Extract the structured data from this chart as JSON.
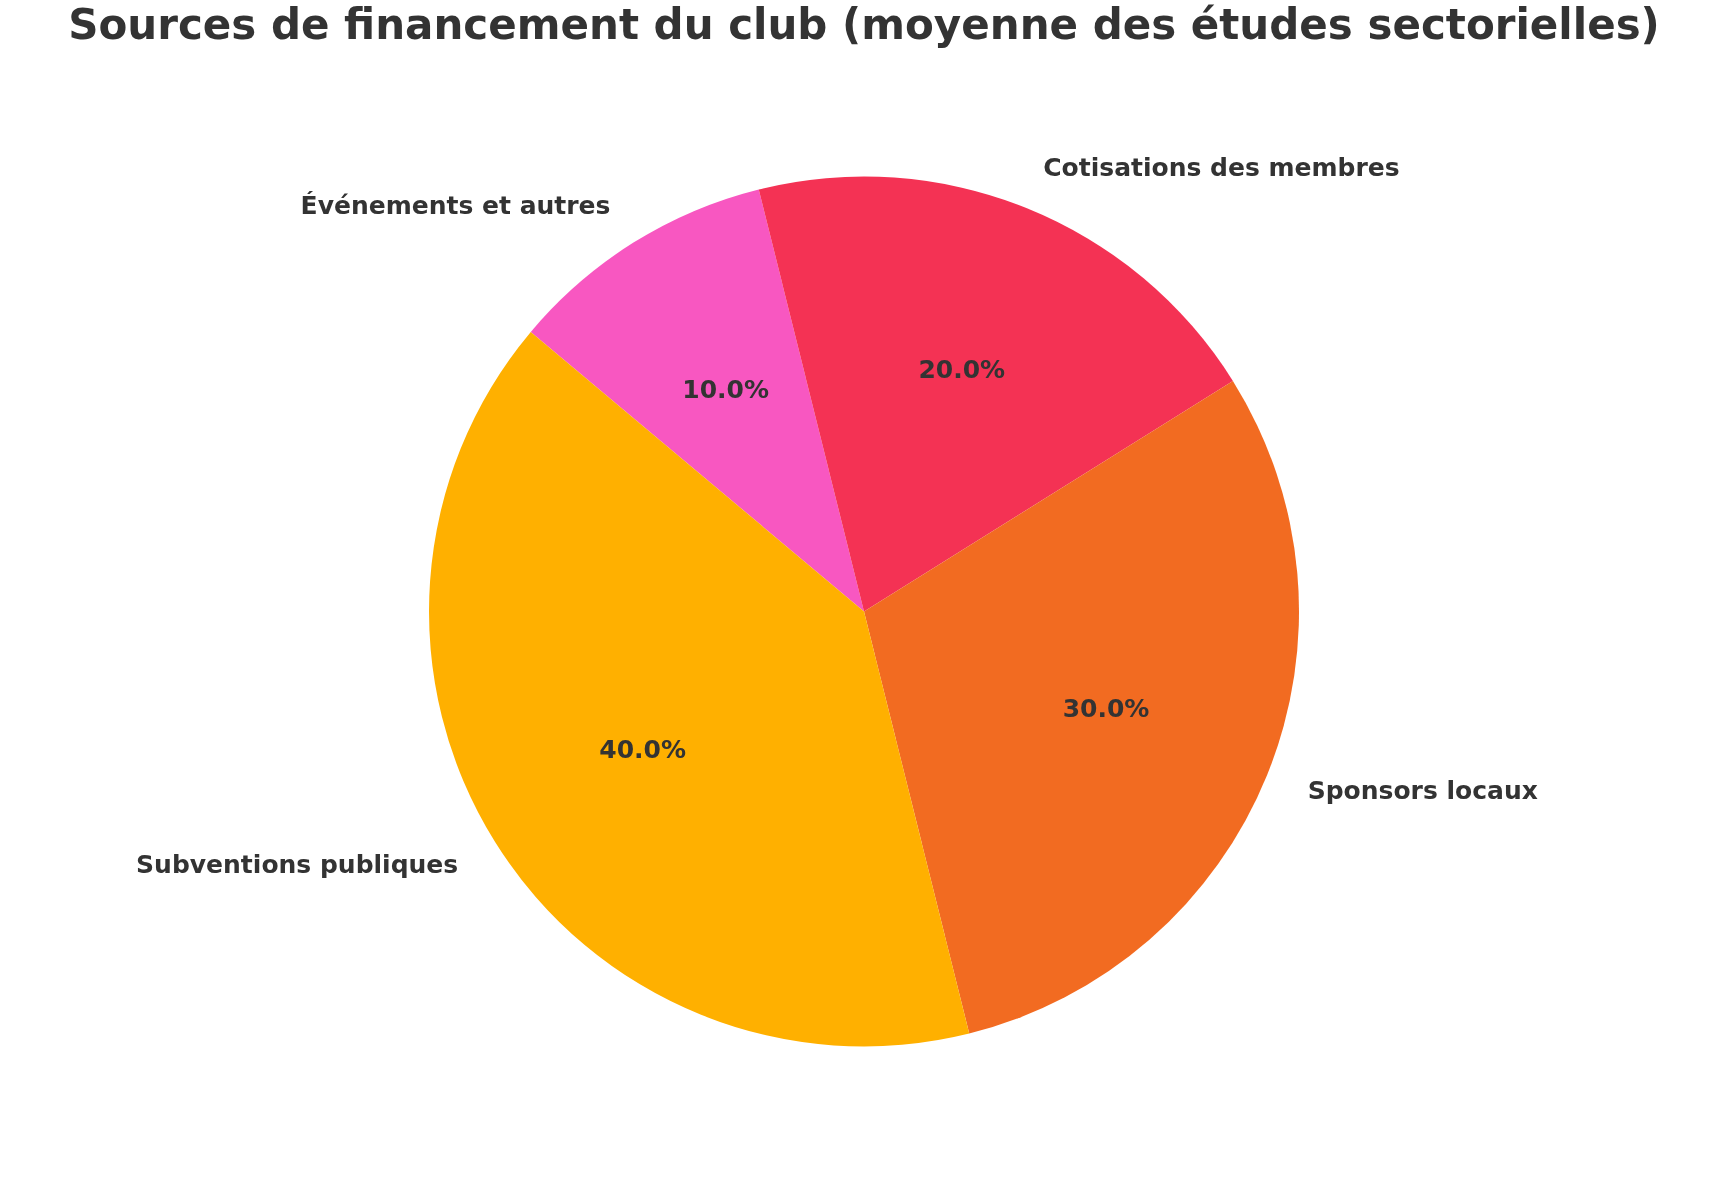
{
  "chart_data": {
    "type": "pie",
    "title": "Sources de financement du club (moyenne des études sectorielles)",
    "categories": [
      "Subventions publiques",
      "Sponsors locaux",
      "Cotisations des membres",
      "Événements et autres"
    ],
    "values": [
      40,
      30,
      20,
      10
    ],
    "colors": [
      "#ffb000",
      "#f26b21",
      "#f43254",
      "#f857c1"
    ],
    "value_labels": [
      "40.0%",
      "30.0%",
      "20.0%",
      "10.0%"
    ],
    "legend": false
  }
}
